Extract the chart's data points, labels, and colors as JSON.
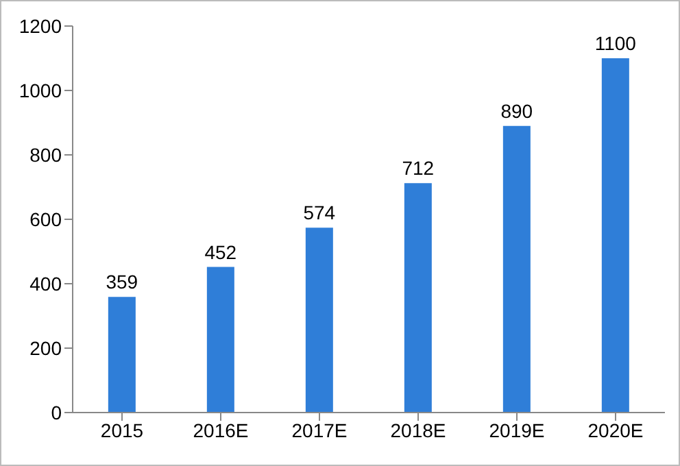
{
  "chart_data": {
    "type": "bar",
    "categories": [
      "2015",
      "2016E",
      "2017E",
      "2018E",
      "2019E",
      "2020E"
    ],
    "values": [
      359,
      452,
      574,
      712,
      890,
      1100
    ],
    "color": "#2f7ed8",
    "ylim": [
      0,
      1200
    ],
    "yticks": [
      0,
      200,
      400,
      600,
      800,
      1000,
      1200
    ],
    "grid": false,
    "data_labels": true
  }
}
